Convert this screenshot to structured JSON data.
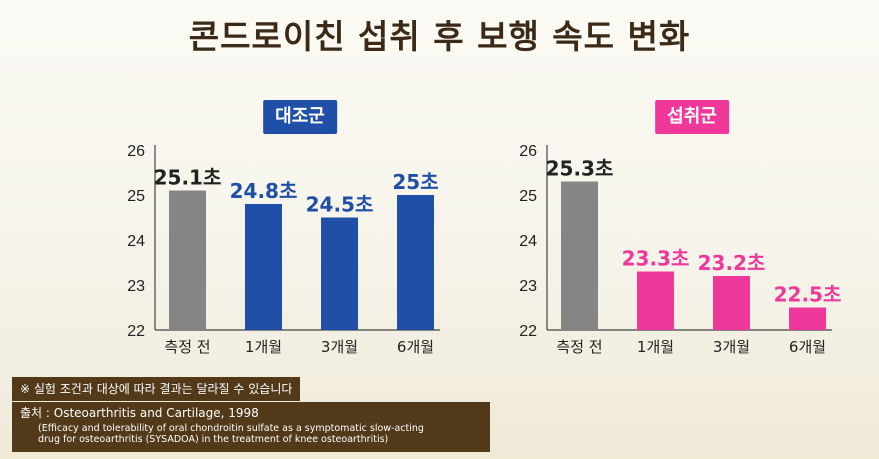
{
  "title": "콘드로이친 섭취 후 보행 속도 변화",
  "note": "※ 실험 조건과 대상에 따라 결과는 달라질 수 있습니다",
  "source": {
    "line1": "출처 : Osteoarthritis and Cartilage, 1998",
    "line2": "(Efficacy and tolerability of oral chondroitin sulfate as a symptomatic slow-acting",
    "line3": "drug for osteoarthritis (SYSADOA) in the treatment of knee osteoarthritis)"
  },
  "chart_data": [
    {
      "type": "bar",
      "title": "대조군",
      "title_color": "#1f4fa6",
      "categories": [
        "측정 전",
        "1개월",
        "3개월",
        "6개월"
      ],
      "values": [
        25.1,
        24.8,
        24.5,
        25
      ],
      "value_labels": [
        "25.1초",
        "24.8초",
        "24.5초",
        "25초"
      ],
      "bar_colors": [
        "#858585",
        "#1f4fa6",
        "#1f4fa6",
        "#1f4fa6"
      ],
      "label_colors": [
        "#222222",
        "#1f4fa6",
        "#1f4fa6",
        "#1f4fa6"
      ],
      "ylim": [
        22,
        26
      ],
      "yticks": [
        22,
        23,
        24,
        25,
        26
      ]
    },
    {
      "type": "bar",
      "title": "섭취군",
      "title_color": "#f0389a",
      "categories": [
        "측정 전",
        "1개월",
        "3개월",
        "6개월"
      ],
      "values": [
        25.3,
        23.3,
        23.2,
        22.5
      ],
      "value_labels": [
        "25.3초",
        "23.3초",
        "23.2초",
        "22.5초"
      ],
      "bar_colors": [
        "#858585",
        "#f0389a",
        "#f0389a",
        "#f0389a"
      ],
      "label_colors": [
        "#222222",
        "#f0389a",
        "#f0389a",
        "#f0389a"
      ],
      "ylim": [
        22,
        26
      ],
      "yticks": [
        22,
        23,
        24,
        25,
        26
      ]
    }
  ]
}
